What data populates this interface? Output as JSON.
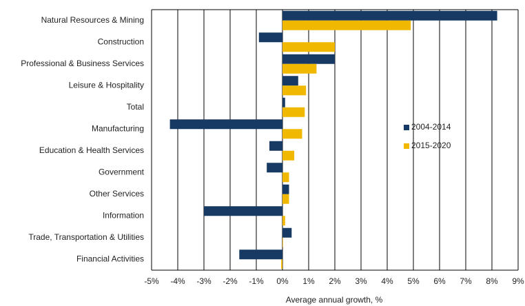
{
  "chart_data": {
    "type": "bar",
    "orientation": "horizontal",
    "xlabel": "Average annual growth, %",
    "categories": [
      "Natural Resources & Mining",
      "Construction",
      "Professional & Business Services",
      "Leisure & Hospitality",
      "Total",
      "Manufacturing",
      "Education & Health Services",
      "Government",
      "Other Services",
      "Information",
      "Trade, Transportation & Utilities",
      "Financial Activities"
    ],
    "series": [
      {
        "name": "2004-2014",
        "color": "#173a64",
        "values": [
          8.2,
          -0.9,
          2.0,
          0.6,
          0.1,
          -4.3,
          -0.5,
          -0.6,
          0.25,
          -3.0,
          0.35,
          -1.65
        ]
      },
      {
        "name": "2015-2020",
        "color": "#f0b800",
        "values": [
          4.9,
          2.0,
          1.3,
          0.9,
          0.85,
          0.75,
          0.45,
          0.25,
          0.25,
          0.1,
          0.02,
          -0.05
        ]
      }
    ],
    "xlim": [
      -5,
      9
    ],
    "xticks": [
      {
        "value": -5,
        "label": "-5%"
      },
      {
        "value": -4,
        "label": "-4%"
      },
      {
        "value": -3,
        "label": "-3%"
      },
      {
        "value": -2,
        "label": "-2%"
      },
      {
        "value": -1,
        "label": "-1%"
      },
      {
        "value": 0,
        "label": "0%"
      },
      {
        "value": 1,
        "label": "1%"
      },
      {
        "value": 2,
        "label": "2%"
      },
      {
        "value": 3,
        "label": "3%"
      },
      {
        "value": 4,
        "label": "4%"
      },
      {
        "value": 5,
        "label": "5%"
      },
      {
        "value": 6,
        "label": "6%"
      },
      {
        "value": 7,
        "label": "7%"
      },
      {
        "value": 8,
        "label": "8%"
      },
      {
        "value": 9,
        "label": "9%"
      }
    ],
    "grid": true
  }
}
